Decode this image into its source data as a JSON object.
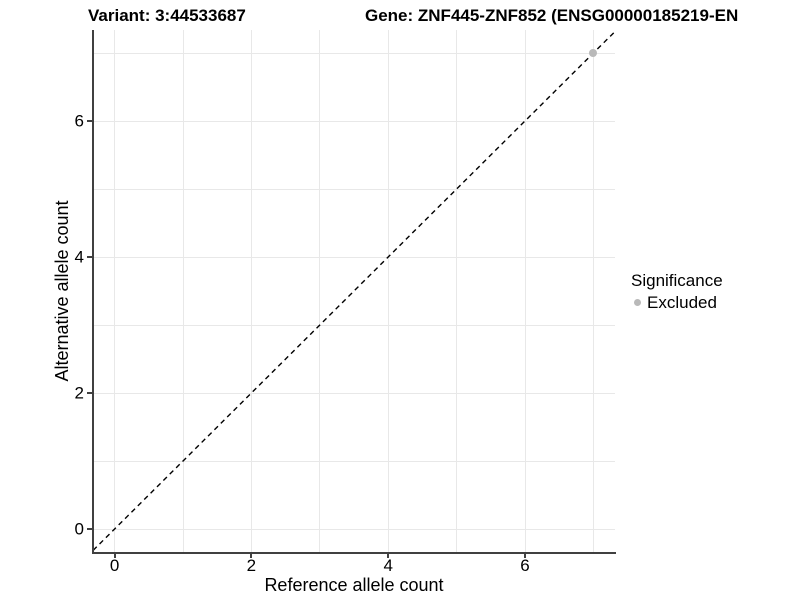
{
  "titles": {
    "variant": "Variant: 3:44533687",
    "gene": "Gene: ZNF445-ZNF852 (ENSG00000185219-EN"
  },
  "chart_data": {
    "type": "scatter",
    "xlabel": "Reference allele count",
    "ylabel": "Alternative allele count",
    "xlim": [
      -0.32,
      7.32
    ],
    "ylim": [
      -0.35,
      7.33
    ],
    "x_ticks": [
      0,
      2,
      4,
      6
    ],
    "y_ticks": [
      0,
      2,
      4,
      6
    ],
    "grid_values": [
      0,
      1,
      2,
      3,
      4,
      5,
      6,
      7
    ],
    "grid": true,
    "points": [
      {
        "x": 7,
        "y": 7,
        "series": "Excluded",
        "color": "#b9b9b9"
      }
    ],
    "abline": {
      "slope": 1,
      "intercept": 0,
      "style": "dashed",
      "color": "#000000"
    },
    "legend": {
      "position": "right",
      "title": "Significance",
      "items": [
        {
          "label": "Excluded",
          "color": "#b9b9b9"
        }
      ]
    },
    "colors": {
      "axis_line": "#404040",
      "grid_line": "#e8e8e8",
      "background": "#ffffff"
    }
  }
}
